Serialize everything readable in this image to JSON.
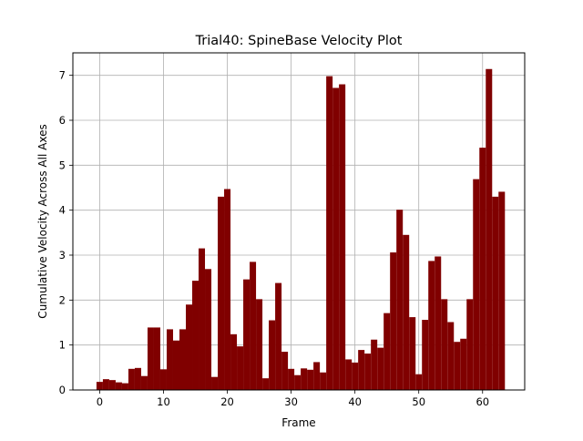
{
  "chart_data": {
    "type": "bar",
    "title": "Trial40: SpineBase Velocity Plot",
    "xlabel": "Frame",
    "ylabel": "Cumulative Velocity Across All Axes",
    "xlim": [
      -4.2,
      66.6
    ],
    "ylim": [
      0,
      7.5
    ],
    "x_ticks": [
      0,
      10,
      20,
      30,
      40,
      50,
      60
    ],
    "y_ticks": [
      0,
      1,
      2,
      3,
      4,
      5,
      6,
      7
    ],
    "grid": true,
    "bar_color": "#800000",
    "x": [
      0,
      1,
      2,
      3,
      4,
      5,
      6,
      7,
      8,
      9,
      10,
      11,
      12,
      13,
      14,
      15,
      16,
      17,
      18,
      19,
      20,
      21,
      22,
      23,
      24,
      25,
      26,
      27,
      28,
      29,
      30,
      31,
      32,
      33,
      34,
      35,
      36,
      37,
      38,
      39,
      40,
      41,
      42,
      43,
      44,
      45,
      46,
      47,
      48,
      49,
      50,
      51,
      52,
      53,
      54,
      55,
      56,
      57,
      58,
      59,
      60,
      61,
      62,
      63
    ],
    "values": [
      0.18,
      0.24,
      0.22,
      0.17,
      0.15,
      0.47,
      0.49,
      0.31,
      1.39,
      1.39,
      0.46,
      1.35,
      1.1,
      1.35,
      1.9,
      2.43,
      3.15,
      2.69,
      0.29,
      4.3,
      4.47,
      1.24,
      0.97,
      2.46,
      2.85,
      2.02,
      0.26,
      1.55,
      2.38,
      0.85,
      0.47,
      0.33,
      0.48,
      0.45,
      0.62,
      0.39,
      6.98,
      6.72,
      6.8,
      0.68,
      0.61,
      0.89,
      0.81,
      1.12,
      0.94,
      1.71,
      3.06,
      4.01,
      3.45,
      1.62,
      0.35,
      1.56,
      2.87,
      2.97,
      2.02,
      1.51,
      1.07,
      1.14,
      2.02,
      4.69,
      5.39,
      7.14,
      4.3,
      4.41
    ]
  }
}
